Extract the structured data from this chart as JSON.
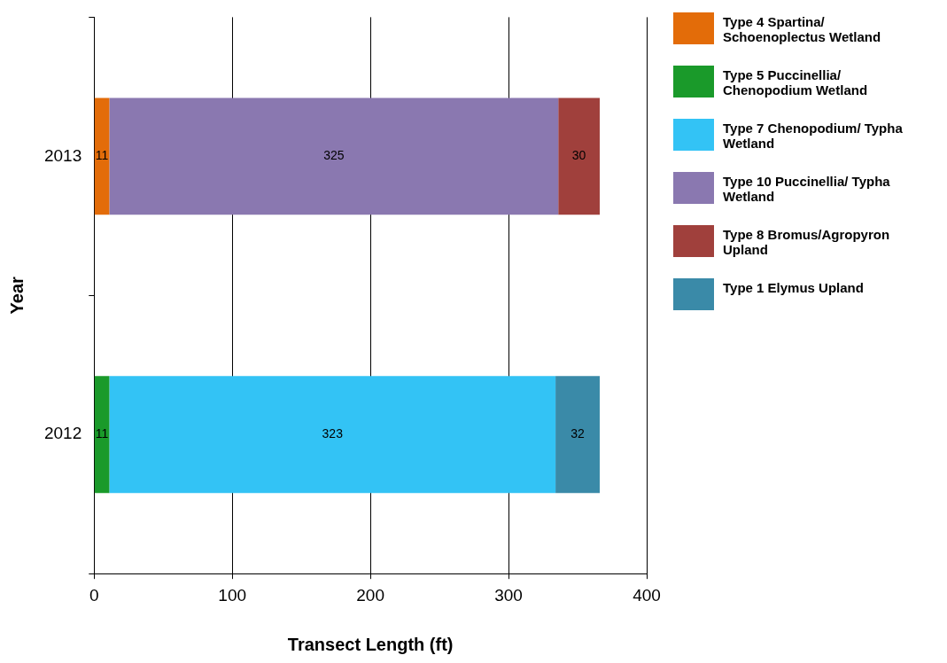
{
  "chart_data": {
    "type": "bar",
    "orientation": "horizontal",
    "stacked": true,
    "categories": [
      "2013",
      "2012"
    ],
    "series": [
      {
        "name": "Type 4 Spartina/ Schoenoplectus Wetland",
        "color": "#e36c09",
        "values": [
          11,
          null
        ]
      },
      {
        "name": "Type 5  Puccinellia/ Chenopodium Wetland",
        "color": "#1a9a2a",
        "values": [
          null,
          11
        ]
      },
      {
        "name": "Type 7 Chenopodium/ Typha Wetland",
        "color": "#33c3f5",
        "values": [
          null,
          323
        ]
      },
      {
        "name": "Type 10 Puccinellia/ Typha Wetland",
        "color": "#8a78b0",
        "values": [
          325,
          null
        ]
      },
      {
        "name": "Type 8 Bromus/Agropyron Upland",
        "color": "#a0403c",
        "values": [
          30,
          null
        ]
      },
      {
        "name": "Type 1 Elymus  Upland",
        "color": "#3a8aa8",
        "values": [
          null,
          32
        ]
      }
    ],
    "xlim": [
      0,
      400
    ],
    "xticks": [
      0,
      100,
      200,
      300,
      400
    ],
    "xlabel": "Transect Length (ft)",
    "ylabel": "Year",
    "grid": "x",
    "legend": "right",
    "data_labels": true
  }
}
